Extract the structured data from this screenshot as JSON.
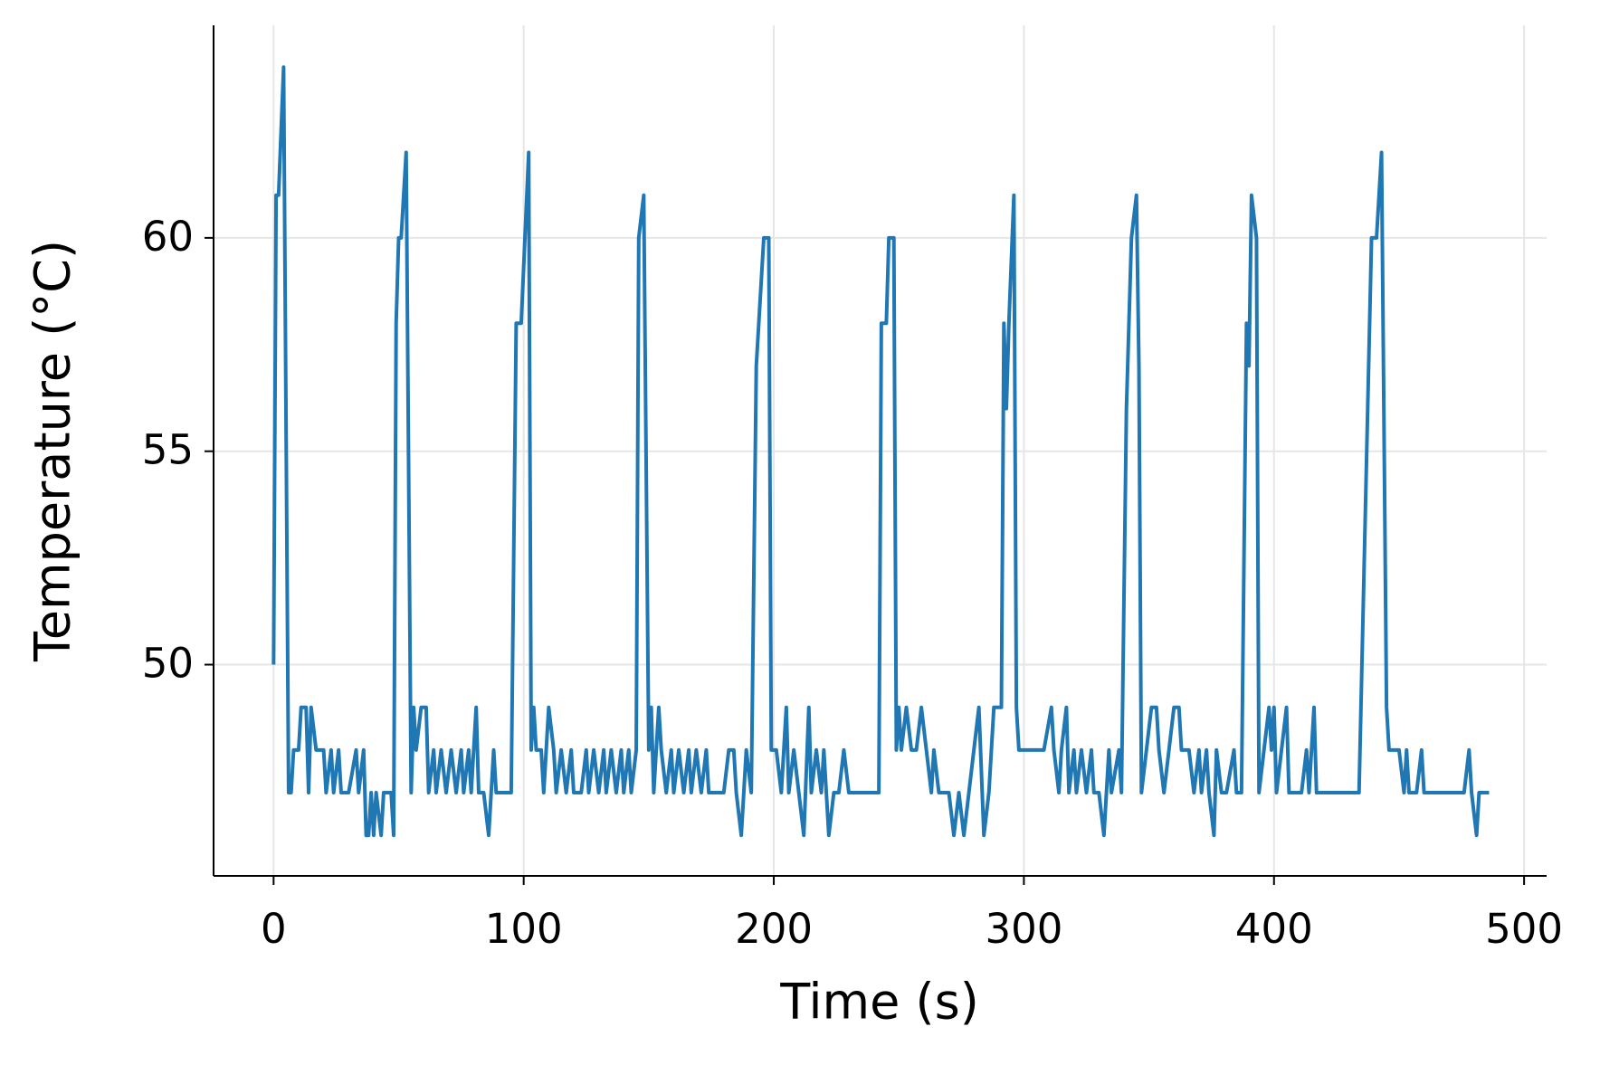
{
  "chart_data": {
    "type": "line",
    "xlabel": "Time (s)",
    "ylabel": "Temperature (°C)",
    "color": "#1f77b4",
    "x": [
      0,
      1,
      2,
      4,
      6,
      7,
      8,
      10,
      11,
      13,
      14,
      15,
      17,
      20,
      21,
      23,
      24,
      26,
      27,
      30,
      33,
      34,
      36,
      37,
      38,
      39,
      40,
      41,
      43,
      44,
      47,
      48,
      49,
      50,
      51,
      53,
      55,
      56,
      57,
      59,
      61,
      62,
      64,
      65,
      67,
      69,
      71,
      73,
      75,
      76,
      78,
      79,
      81,
      82,
      84,
      86,
      88,
      89,
      92,
      95,
      97,
      99,
      102,
      103,
      104,
      105,
      107,
      108,
      110,
      112,
      113,
      115,
      117,
      119,
      120,
      123,
      125,
      126,
      128,
      130,
      132,
      133,
      135,
      137,
      139,
      140,
      142,
      143,
      145,
      146,
      148,
      150,
      151,
      152,
      154,
      155,
      157,
      159,
      160,
      162,
      164,
      166,
      167,
      169,
      171,
      173,
      174,
      177,
      180,
      182,
      184,
      185,
      187,
      189,
      191,
      193,
      195,
      196,
      198,
      199,
      201,
      203,
      205,
      206,
      208,
      210,
      212,
      214,
      215,
      217,
      219,
      220,
      222,
      224,
      226,
      228,
      230,
      234,
      238,
      242,
      243,
      245,
      246,
      248,
      249,
      250,
      251,
      253,
      255,
      257,
      259,
      261,
      263,
      264,
      266,
      268,
      270,
      272,
      274,
      276,
      278,
      280,
      282,
      284,
      286,
      288,
      291,
      292,
      293,
      294,
      296,
      297,
      298,
      303,
      308,
      311,
      312,
      314,
      315,
      317,
      318,
      320,
      321,
      323,
      325,
      327,
      328,
      330,
      332,
      334,
      335,
      338,
      339,
      341,
      343,
      345,
      346,
      347,
      349,
      351,
      353,
      354,
      356,
      358,
      360,
      362,
      363,
      366,
      368,
      370,
      371,
      373,
      374,
      376,
      377,
      379,
      381,
      384,
      385,
      387,
      389,
      390,
      391,
      393,
      394,
      396,
      398,
      399,
      400,
      401,
      403,
      405,
      406,
      408,
      411,
      413,
      414,
      416,
      417,
      420,
      424,
      428,
      434,
      439,
      441,
      443,
      445,
      446,
      450,
      452,
      453,
      454,
      457,
      459,
      460,
      462,
      466,
      469,
      472,
      476,
      478,
      479,
      481,
      482,
      486
    ],
    "values": [
      50,
      61,
      61,
      64,
      47,
      47,
      48,
      48,
      49,
      49,
      47,
      49,
      48,
      48,
      47,
      48,
      47,
      48,
      47,
      47,
      48,
      47,
      48,
      46,
      46,
      47,
      46,
      47,
      46,
      47,
      47,
      46,
      58,
      60,
      60,
      62,
      47,
      49,
      48,
      49,
      49,
      47,
      48,
      47,
      48,
      47,
      48,
      47,
      48,
      47,
      48,
      47,
      49,
      47,
      47,
      46,
      48,
      47,
      47,
      47,
      58,
      58,
      62,
      48,
      49,
      48,
      48,
      47,
      49,
      48,
      47,
      48,
      47,
      48,
      47,
      47,
      48,
      47,
      48,
      47,
      48,
      47,
      48,
      47,
      48,
      47,
      48,
      47,
      48,
      60,
      61,
      48,
      49,
      47,
      49,
      48,
      47,
      48,
      47,
      48,
      47,
      48,
      47,
      48,
      47,
      48,
      47,
      47,
      47,
      48,
      48,
      47,
      46,
      48,
      47,
      57,
      59,
      60,
      60,
      48,
      48,
      47,
      49,
      47,
      48,
      47,
      46,
      49,
      47,
      48,
      47,
      48,
      46,
      47,
      47,
      48,
      47,
      47,
      47,
      47,
      58,
      58,
      60,
      60,
      48,
      49,
      48,
      49,
      48,
      48,
      49,
      48,
      47,
      48,
      47,
      47,
      47,
      46,
      47,
      46,
      47,
      48,
      49,
      46,
      47,
      49,
      49,
      58,
      56,
      58,
      61,
      49,
      48,
      48,
      48,
      49,
      48,
      47,
      48,
      49,
      47,
      48,
      47,
      48,
      47,
      48,
      47,
      47,
      46,
      48,
      47,
      48,
      47,
      56,
      60,
      61,
      57,
      47,
      48,
      49,
      49,
      48,
      47,
      48,
      49,
      49,
      48,
      48,
      47,
      48,
      47,
      48,
      47,
      46,
      48,
      47,
      47,
      48,
      47,
      47,
      58,
      57,
      61,
      60,
      47,
      48,
      49,
      48,
      49,
      47,
      48,
      49,
      47,
      47,
      47,
      48,
      47,
      49,
      47,
      47,
      47,
      47,
      47,
      60,
      60,
      62,
      49,
      48,
      48,
      47,
      48,
      47,
      47,
      48,
      47,
      47,
      47,
      47,
      47,
      47,
      48,
      47,
      46,
      47,
      47
    ],
    "xlim": [
      -24,
      509
    ],
    "ylim": [
      45.05,
      64.98
    ],
    "xticks": [
      0,
      100,
      200,
      300,
      400,
      500
    ],
    "yticks": [
      50,
      55,
      60
    ],
    "grid": true
  }
}
